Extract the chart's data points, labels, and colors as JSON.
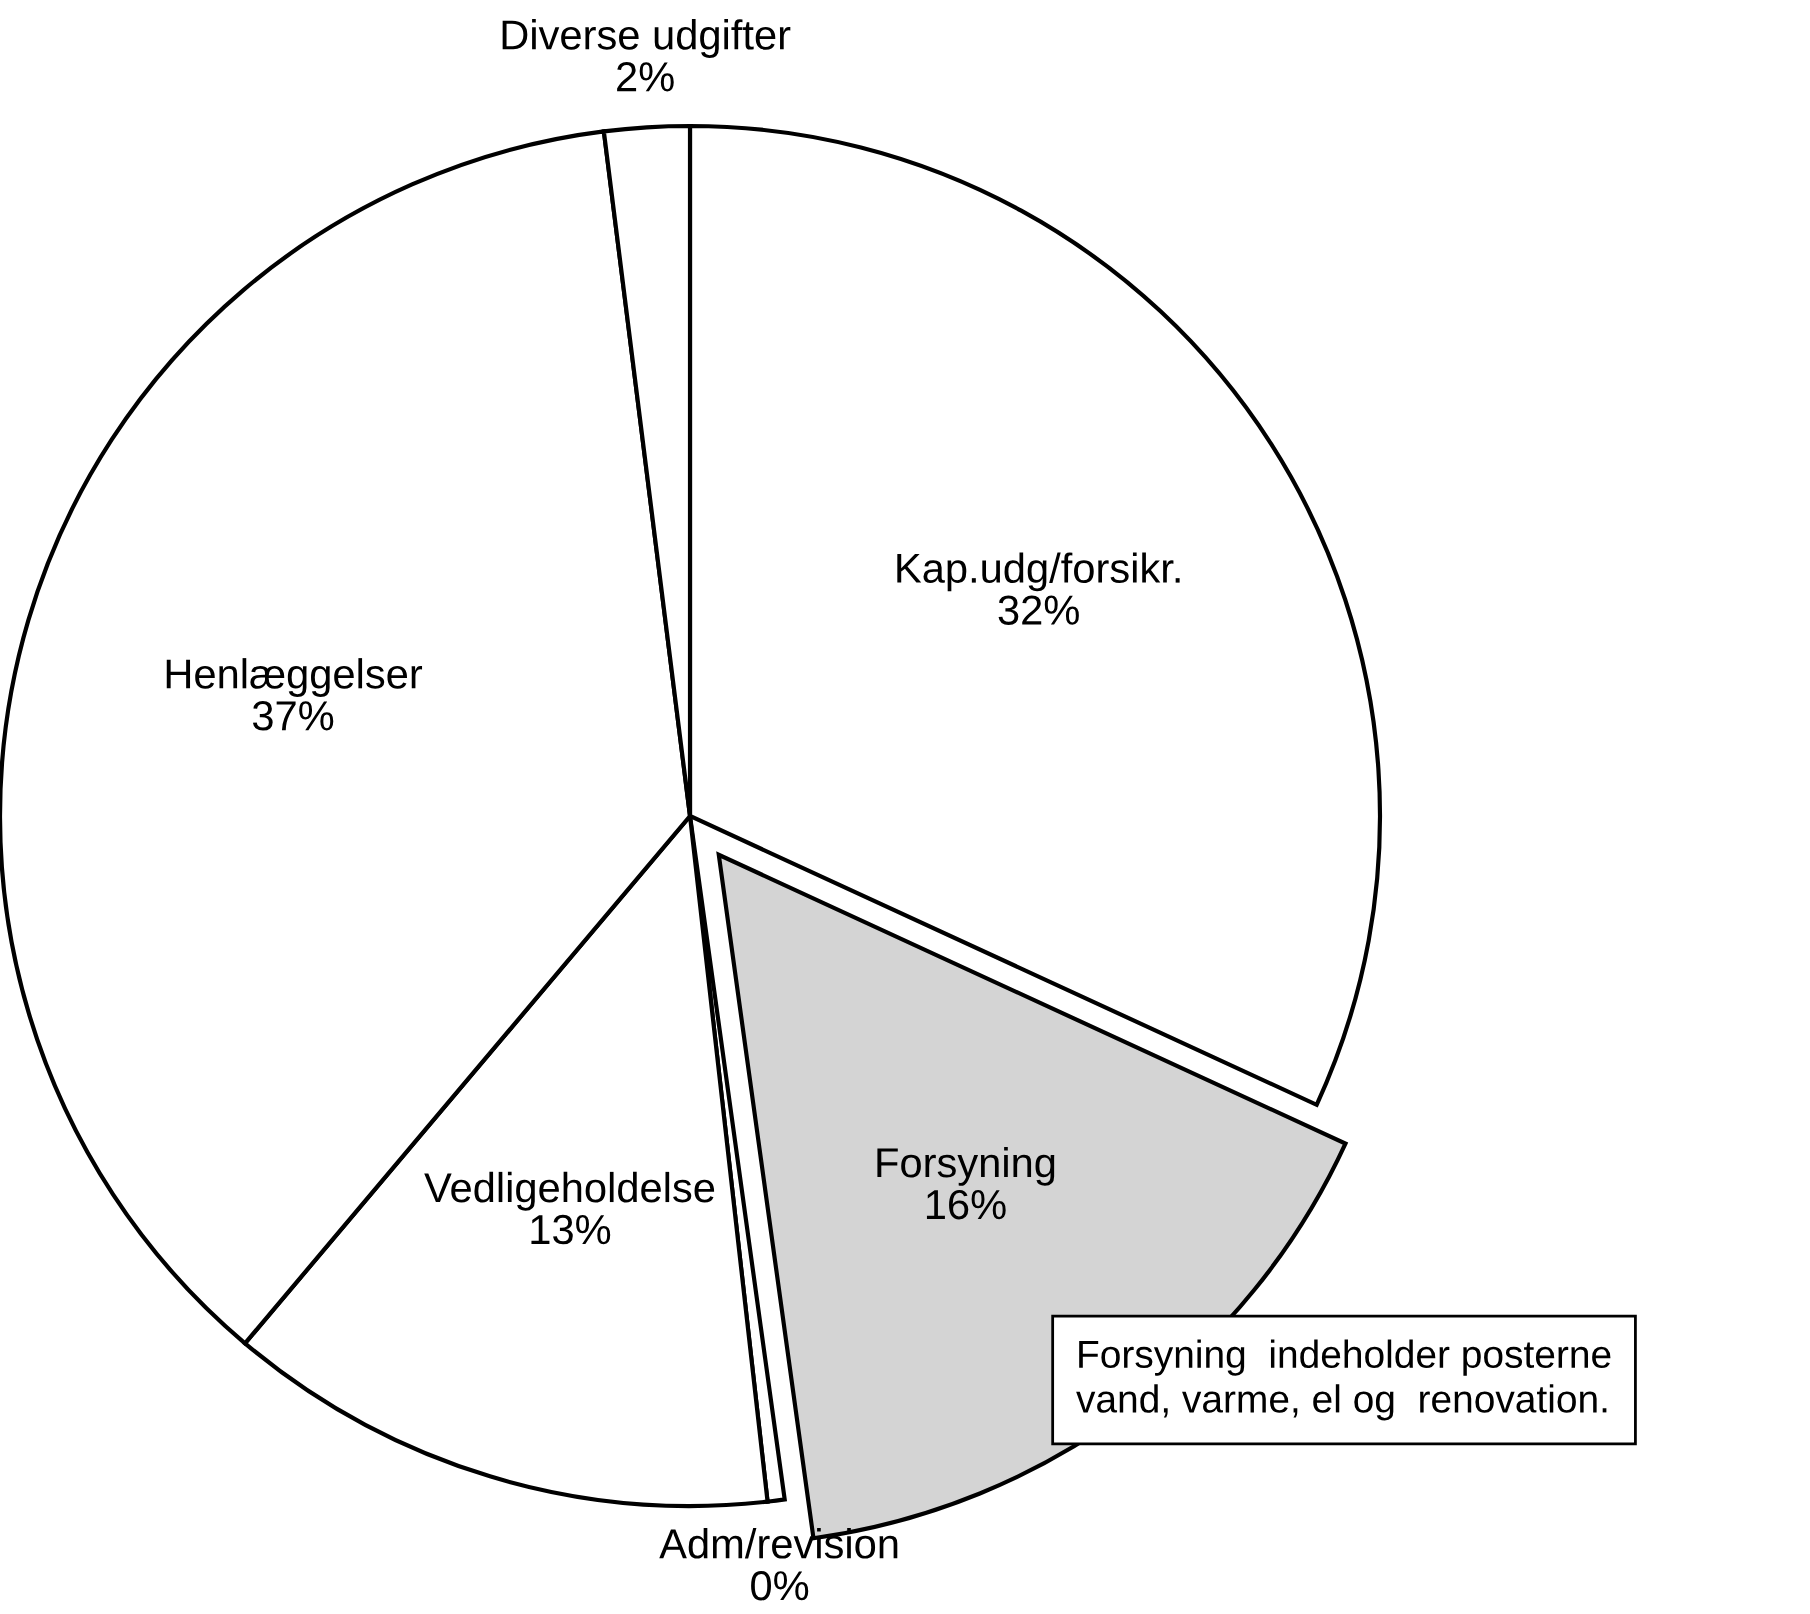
{
  "chart_data": {
    "type": "pie",
    "categories": [
      "Kap.udg/forsikr.",
      "Forsyning",
      "Adm/revision",
      "Vedligeholdelse",
      "Henlæggelser",
      "Diverse udgifter"
    ],
    "values": [
      32,
      16,
      0.4,
      13,
      37,
      2
    ],
    "value_labels": [
      "32%",
      "16%",
      "0%",
      "13%",
      "37%",
      "2%"
    ],
    "colors": [
      "#ffffff",
      "#d4d4d4",
      "#ffffff",
      "#ffffff",
      "#ffffff",
      "#ffffff"
    ],
    "annotations": [
      "Forsyning  indeholder posterne\nvand, varme, el og  renovation."
    ]
  }
}
